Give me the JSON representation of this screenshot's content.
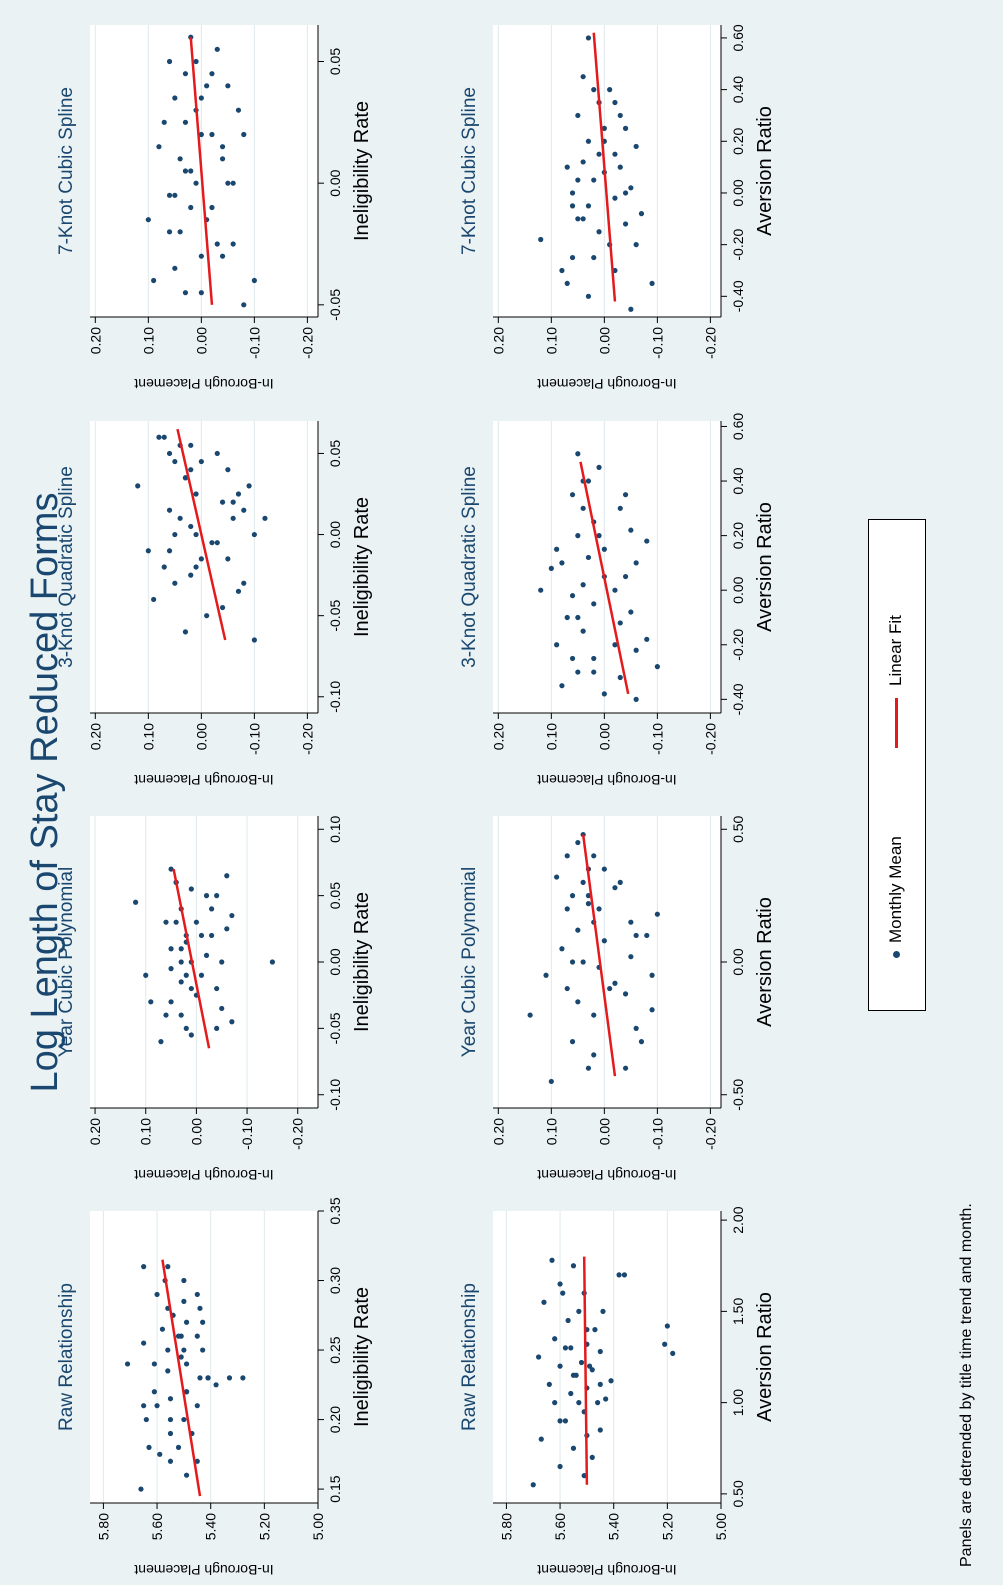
{
  "title": "Log Length of Stay Reduced Forms",
  "note": "Panels are detrended by title time trend and month.",
  "legend": [
    {
      "label": "Monthly Mean",
      "kind": "marker"
    },
    {
      "label": "Linear Fit",
      "kind": "line"
    }
  ],
  "colors": {
    "background": "#eaf2f3",
    "panel": "#ffffff",
    "title": "#1a476f",
    "marker": "#1a476f",
    "fit": "#e41a1c",
    "grid": "#dfe9ec"
  },
  "chart_data": [
    {
      "type": "scatter",
      "title": "Raw Relationship",
      "xlabel": "Ineligibility Rate",
      "ylabel": "In-Borough Placement",
      "xlim": [
        0.14,
        0.35
      ],
      "ylim": [
        5.0,
        5.85
      ],
      "xticks": [
        0.15,
        0.2,
        0.25,
        0.3,
        0.35
      ],
      "xtick_labels": [
        "0.15",
        "0.20",
        "0.25",
        "0.30",
        "0.35"
      ],
      "yticks": [
        5.0,
        5.2,
        5.4,
        5.6,
        5.8
      ],
      "ytick_labels": [
        "5.00",
        "5.20",
        "5.40",
        "5.60",
        "5.80"
      ],
      "fit": {
        "x": [
          0.145,
          0.315
        ],
        "y": [
          5.44,
          5.58
        ]
      },
      "x": [
        0.15,
        0.16,
        0.17,
        0.175,
        0.18,
        0.19,
        0.19,
        0.2,
        0.2,
        0.21,
        0.21,
        0.215,
        0.22,
        0.22,
        0.225,
        0.23,
        0.23,
        0.235,
        0.24,
        0.24,
        0.245,
        0.25,
        0.25,
        0.255,
        0.26,
        0.26,
        0.265,
        0.27,
        0.275,
        0.28,
        0.285,
        0.29,
        0.3,
        0.3,
        0.31,
        0.31,
        0.23,
        0.23,
        0.22,
        0.28,
        0.24,
        0.2,
        0.18,
        0.17,
        0.25,
        0.26,
        0.27,
        0.23,
        0.21,
        0.29
      ],
      "y": [
        5.66,
        5.49,
        5.55,
        5.59,
        5.63,
        5.47,
        5.55,
        5.55,
        5.5,
        5.65,
        5.45,
        5.55,
        5.61,
        5.49,
        5.38,
        5.28,
        5.33,
        5.56,
        5.61,
        5.49,
        5.51,
        5.43,
        5.56,
        5.65,
        5.45,
        5.51,
        5.58,
        5.43,
        5.54,
        5.56,
        5.5,
        5.6,
        5.57,
        5.5,
        5.56,
        5.65,
        5.44,
        5.41,
        5.49,
        5.44,
        5.71,
        5.64,
        5.52,
        5.45,
        5.5,
        5.52,
        5.49,
        5.41,
        5.6,
        5.45
      ]
    },
    {
      "type": "scatter",
      "title": "Year Cubic Polynomial",
      "xlabel": "Ineligibility Rate",
      "ylabel": "In-Borough Placement",
      "xlim": [
        -0.11,
        0.11
      ],
      "ylim": [
        -0.24,
        0.21
      ],
      "xticks": [
        -0.1,
        -0.05,
        0.0,
        0.05,
        0.1
      ],
      "xtick_labels": [
        "-0.10",
        "-0.05",
        "0.00",
        "0.05",
        "0.10"
      ],
      "yticks": [
        -0.2,
        -0.1,
        0.0,
        0.1,
        0.2
      ],
      "ytick_labels": [
        "-0.20",
        "-0.10",
        "0.00",
        "0.10",
        "0.20"
      ],
      "fit": {
        "x": [
          -0.065,
          0.07
        ],
        "y": [
          -0.025,
          0.045
        ]
      },
      "x": [
        -0.06,
        -0.055,
        -0.05,
        -0.045,
        -0.04,
        -0.035,
        -0.03,
        -0.025,
        -0.02,
        -0.015,
        -0.01,
        -0.005,
        0.0,
        0.0,
        0.005,
        0.01,
        0.015,
        0.02,
        0.025,
        0.03,
        0.035,
        0.04,
        0.045,
        0.05,
        0.055,
        0.06,
        0.065,
        0.07,
        -0.03,
        -0.02,
        -0.01,
        0.01,
        0.02,
        0.03,
        0.04,
        0.0,
        -0.04,
        0.05,
        0.03,
        -0.05,
        0.06,
        0.0,
        0.02,
        -0.01
      ],
      "y": [
        0.07,
        0.01,
        0.02,
        -0.07,
        0.03,
        -0.05,
        0.05,
        0.0,
        0.01,
        0.03,
        -0.01,
        0.05,
        -0.15,
        0.01,
        -0.02,
        0.05,
        0.02,
        -0.03,
        -0.06,
        0.04,
        -0.07,
        0.03,
        0.12,
        -0.02,
        0.01,
        0.04,
        -0.06,
        0.05,
        0.09,
        -0.04,
        0.02,
        0.03,
        -0.01,
        0.0,
        -0.03,
        0.03,
        0.06,
        -0.04,
        0.06,
        -0.04,
        0.04,
        -0.05,
        0.02,
        0.1
      ]
    },
    {
      "type": "scatter",
      "title": "3-Knot Quadratic Spline",
      "xlabel": "Ineligibility Rate",
      "ylabel": "In-Borough Placement",
      "xlim": [
        -0.11,
        0.07
      ],
      "ylim": [
        -0.22,
        0.21
      ],
      "xticks": [
        -0.1,
        -0.05,
        0.0,
        0.05
      ],
      "xtick_labels": [
        "-0.10",
        "-0.05",
        "0.00",
        "0.05"
      ],
      "yticks": [
        -0.2,
        -0.1,
        0.0,
        0.1,
        0.2
      ],
      "ytick_labels": [
        "-0.20",
        "-0.10",
        "0.00",
        "0.10",
        "0.20"
      ],
      "fit": {
        "x": [
          -0.065,
          0.065
        ],
        "y": [
          -0.045,
          0.045
        ]
      },
      "x": [
        -0.065,
        -0.06,
        -0.05,
        -0.045,
        -0.04,
        -0.035,
        -0.03,
        -0.025,
        -0.02,
        -0.015,
        -0.01,
        -0.005,
        0.0,
        0.0,
        0.005,
        0.01,
        0.015,
        0.02,
        0.025,
        0.03,
        0.035,
        0.04,
        0.045,
        0.05,
        0.055,
        0.06,
        -0.02,
        -0.01,
        0.01,
        0.02,
        0.03,
        0.04,
        0.05,
        0.0,
        -0.015,
        -0.005,
        0.015,
        0.025,
        0.035,
        0.045,
        0.055,
        0.06,
        -0.03,
        0.01
      ],
      "y": [
        -0.1,
        0.03,
        -0.01,
        -0.04,
        0.09,
        -0.07,
        -0.08,
        0.02,
        0.01,
        -0.05,
        0.06,
        -0.03,
        -0.1,
        0.05,
        0.02,
        0.04,
        -0.08,
        -0.06,
        0.01,
        0.12,
        0.03,
        -0.05,
        0.0,
        0.06,
        0.04,
        0.08,
        0.07,
        0.1,
        -0.12,
        -0.04,
        -0.09,
        0.02,
        -0.03,
        0.01,
        0.0,
        -0.02,
        0.06,
        -0.07,
        0.03,
        0.05,
        0.02,
        0.07,
        0.05,
        -0.06
      ]
    },
    {
      "type": "scatter",
      "title": "7-Knot Cubic Spline",
      "xlabel": "Ineligibility Rate",
      "ylabel": "In-Borough Placement",
      "xlim": [
        -0.055,
        0.065
      ],
      "ylim": [
        -0.22,
        0.21
      ],
      "xticks": [
        -0.05,
        0.0,
        0.05
      ],
      "xtick_labels": [
        "-0.05",
        "0.00",
        "0.05"
      ],
      "yticks": [
        -0.2,
        -0.1,
        0.0,
        0.1,
        0.2
      ],
      "ytick_labels": [
        "-0.20",
        "-0.10",
        "0.00",
        "0.10",
        "0.20"
      ],
      "fit": {
        "x": [
          -0.05,
          0.06
        ],
        "y": [
          -0.02,
          0.02
        ]
      },
      "x": [
        -0.05,
        -0.045,
        -0.04,
        -0.035,
        -0.03,
        -0.025,
        -0.02,
        -0.015,
        -0.01,
        -0.005,
        0.0,
        0.005,
        0.01,
        0.015,
        0.02,
        0.025,
        0.03,
        0.035,
        0.04,
        0.045,
        0.05,
        0.055,
        0.06,
        -0.03,
        -0.02,
        -0.01,
        0.0,
        0.01,
        0.02,
        0.03,
        0.04,
        -0.04,
        -0.025,
        -0.005,
        0.015,
        0.035,
        0.05,
        0.0,
        -0.015,
        0.025,
        0.045,
        -0.045,
        0.005,
        0.02
      ],
      "y": [
        -0.08,
        0.03,
        -0.1,
        0.05,
        0.0,
        -0.06,
        0.04,
        0.1,
        -0.02,
        0.06,
        -0.05,
        0.02,
        -0.04,
        0.08,
        0.0,
        0.03,
        -0.07,
        0.05,
        -0.01,
        0.03,
        0.01,
        -0.03,
        0.02,
        -0.04,
        0.06,
        0.02,
        -0.06,
        0.04,
        -0.02,
        0.01,
        -0.05,
        0.09,
        -0.03,
        0.05,
        -0.04,
        0.0,
        0.06,
        0.01,
        -0.01,
        0.07,
        -0.02,
        0.0,
        0.03,
        -0.08
      ]
    },
    {
      "type": "scatter",
      "title": "Raw Relationship",
      "xlabel": "Aversion Ratio",
      "ylabel": "In-Borough Placement",
      "xlim": [
        0.45,
        2.05
      ],
      "ylim": [
        5.0,
        5.85
      ],
      "xticks": [
        0.5,
        1.0,
        1.5,
        2.0
      ],
      "xtick_labels": [
        "0.50",
        "1.00",
        "1.50",
        "2.00"
      ],
      "yticks": [
        5.0,
        5.2,
        5.4,
        5.6,
        5.8
      ],
      "ytick_labels": [
        "5.00",
        "5.20",
        "5.40",
        "5.60",
        "5.80"
      ],
      "fit": {
        "x": [
          0.55,
          1.8
        ],
        "y": [
          5.5,
          5.51
        ]
      },
      "x": [
        0.55,
        0.6,
        0.65,
        0.7,
        0.75,
        0.8,
        0.85,
        0.9,
        0.95,
        1.0,
        1.02,
        1.05,
        1.08,
        1.1,
        1.12,
        1.15,
        1.18,
        1.2,
        1.22,
        1.25,
        1.28,
        1.3,
        1.32,
        1.35,
        1.4,
        1.45,
        1.5,
        1.55,
        1.6,
        1.65,
        1.7,
        1.75,
        1.78,
        0.9,
        1.0,
        1.1,
        1.2,
        1.3,
        1.4,
        1.5,
        1.6,
        1.7,
        1.27,
        1.32,
        1.42,
        1.0,
        1.15,
        0.82
      ],
      "y": [
        5.7,
        5.51,
        5.6,
        5.48,
        5.55,
        5.67,
        5.45,
        5.58,
        5.51,
        5.62,
        5.43,
        5.56,
        5.5,
        5.64,
        5.41,
        5.55,
        5.48,
        5.6,
        5.52,
        5.68,
        5.45,
        5.58,
        5.5,
        5.62,
        5.47,
        5.57,
        5.53,
        5.66,
        5.51,
        5.6,
        5.36,
        5.55,
        5.63,
        5.6,
        5.53,
        5.45,
        5.49,
        5.56,
        5.5,
        5.44,
        5.59,
        5.38,
        5.18,
        5.21,
        5.2,
        5.46,
        5.54,
        5.5
      ]
    },
    {
      "type": "scatter",
      "title": "Year Cubic Polynomial",
      "xlabel": "Aversion Ratio",
      "ylabel": "In-Borough Placement",
      "xlim": [
        -0.55,
        0.55
      ],
      "ylim": [
        -0.22,
        0.21
      ],
      "xticks": [
        -0.5,
        0.0,
        0.5
      ],
      "xtick_labels": [
        "-0.50",
        "0.00",
        "0.50"
      ],
      "yticks": [
        -0.2,
        -0.1,
        0.0,
        0.1,
        0.2
      ],
      "ytick_labels": [
        "-0.20",
        "-0.10",
        "0.00",
        "0.10",
        "0.20"
      ],
      "fit": {
        "x": [
          -0.43,
          0.48
        ],
        "y": [
          -0.02,
          0.04
        ]
      },
      "x": [
        -0.45,
        -0.4,
        -0.35,
        -0.3,
        -0.25,
        -0.2,
        -0.18,
        -0.15,
        -0.12,
        -0.1,
        -0.08,
        -0.05,
        -0.02,
        0.0,
        0.02,
        0.05,
        0.08,
        0.1,
        0.12,
        0.15,
        0.18,
        0.2,
        0.22,
        0.25,
        0.28,
        0.3,
        0.32,
        0.35,
        0.4,
        0.45,
        0.48,
        -0.3,
        -0.2,
        -0.1,
        0.0,
        0.1,
        0.2,
        0.3,
        0.4,
        -0.4,
        0.15,
        0.35,
        -0.05,
        0.25
      ],
      "y": [
        0.1,
        -0.04,
        0.02,
        0.06,
        -0.06,
        0.14,
        -0.09,
        0.05,
        -0.04,
        0.07,
        -0.02,
        0.11,
        0.01,
        0.04,
        -0.05,
        0.08,
        0.0,
        -0.06,
        0.05,
        0.02,
        -0.1,
        0.07,
        0.03,
        0.06,
        -0.02,
        0.04,
        0.09,
        0.03,
        0.02,
        0.05,
        0.04,
        -0.07,
        0.02,
        -0.01,
        0.06,
        -0.08,
        0.01,
        -0.03,
        0.07,
        0.03,
        -0.05,
        0.0,
        -0.09,
        0.03
      ]
    },
    {
      "type": "scatter",
      "title": "3-Knot Quadratic Spline",
      "xlabel": "Aversion Ratio",
      "ylabel": "In-Borough Placement",
      "xlim": [
        -0.45,
        0.62
      ],
      "ylim": [
        -0.22,
        0.21
      ],
      "xticks": [
        -0.4,
        -0.2,
        0.0,
        0.2,
        0.4,
        0.6
      ],
      "xtick_labels": [
        "-0.40",
        "-0.20",
        "0.00",
        "0.20",
        "0.40",
        "0.60"
      ],
      "yticks": [
        -0.2,
        -0.1,
        0.0,
        0.1,
        0.2
      ],
      "ytick_labels": [
        "-0.20",
        "-0.10",
        "0.00",
        "0.10",
        "0.20"
      ],
      "fit": {
        "x": [
          -0.38,
          0.47
        ],
        "y": [
          -0.045,
          0.045
        ]
      },
      "x": [
        -0.4,
        -0.38,
        -0.35,
        -0.32,
        -0.3,
        -0.28,
        -0.25,
        -0.22,
        -0.2,
        -0.18,
        -0.15,
        -0.12,
        -0.1,
        -0.08,
        -0.05,
        -0.02,
        0.0,
        0.02,
        0.05,
        0.08,
        0.1,
        0.12,
        0.15,
        0.18,
        0.2,
        0.22,
        0.25,
        0.3,
        0.35,
        0.4,
        0.45,
        0.5,
        -0.3,
        -0.2,
        -0.1,
        0.0,
        0.1,
        0.2,
        0.3,
        0.4,
        -0.25,
        0.05,
        0.15,
        0.35
      ],
      "y": [
        -0.06,
        0.0,
        0.08,
        -0.03,
        0.05,
        -0.1,
        0.02,
        -0.06,
        0.09,
        -0.08,
        0.04,
        -0.03,
        0.07,
        -0.05,
        0.02,
        0.06,
        -0.02,
        0.04,
        -0.04,
        0.1,
        -0.06,
        0.03,
        0.0,
        -0.08,
        0.05,
        -0.05,
        0.02,
        0.04,
        0.06,
        0.03,
        0.01,
        0.05,
        0.02,
        -0.02,
        0.05,
        0.12,
        0.08,
        0.01,
        -0.03,
        0.04,
        0.06,
        0.0,
        0.09,
        -0.04
      ]
    },
    {
      "type": "scatter",
      "title": "7-Knot Cubic Spline",
      "xlabel": "Aversion Ratio",
      "ylabel": "In-Borough Placement",
      "xlim": [
        -0.48,
        0.65
      ],
      "ylim": [
        -0.22,
        0.21
      ],
      "xticks": [
        -0.4,
        -0.2,
        0.0,
        0.2,
        0.4,
        0.6
      ],
      "xtick_labels": [
        "-0.40",
        "-0.20",
        "0.00",
        "0.20",
        "0.40",
        "0.60"
      ],
      "yticks": [
        -0.2,
        -0.1,
        0.0,
        0.1,
        0.2
      ],
      "ytick_labels": [
        "-0.20",
        "-0.10",
        "0.00",
        "0.10",
        "0.20"
      ],
      "fit": {
        "x": [
          -0.42,
          0.62
        ],
        "y": [
          -0.02,
          0.02
        ]
      },
      "x": [
        -0.45,
        -0.4,
        -0.35,
        -0.3,
        -0.25,
        -0.2,
        -0.18,
        -0.15,
        -0.12,
        -0.1,
        -0.08,
        -0.05,
        -0.02,
        0.0,
        0.02,
        0.05,
        0.08,
        0.1,
        0.12,
        0.15,
        0.18,
        0.2,
        0.25,
        0.3,
        0.35,
        0.4,
        0.45,
        0.6,
        -0.3,
        -0.2,
        -0.1,
        0.0,
        0.1,
        0.2,
        0.3,
        0.4,
        -0.25,
        -0.05,
        0.15,
        0.35,
        -0.35,
        0.05,
        0.25
      ],
      "y": [
        -0.05,
        0.03,
        0.07,
        -0.02,
        0.06,
        -0.06,
        0.12,
        0.01,
        -0.04,
        0.05,
        -0.07,
        0.03,
        -0.02,
        0.06,
        -0.05,
        0.02,
        0.0,
        -0.03,
        0.04,
        0.01,
        -0.06,
        0.03,
        0.0,
        0.05,
        -0.02,
        0.02,
        0.04,
        0.03,
        0.08,
        -0.01,
        0.04,
        -0.04,
        0.07,
        0.0,
        -0.03,
        -0.01,
        0.02,
        0.06,
        -0.02,
        0.01,
        -0.09,
        0.05,
        -0.04
      ]
    }
  ]
}
